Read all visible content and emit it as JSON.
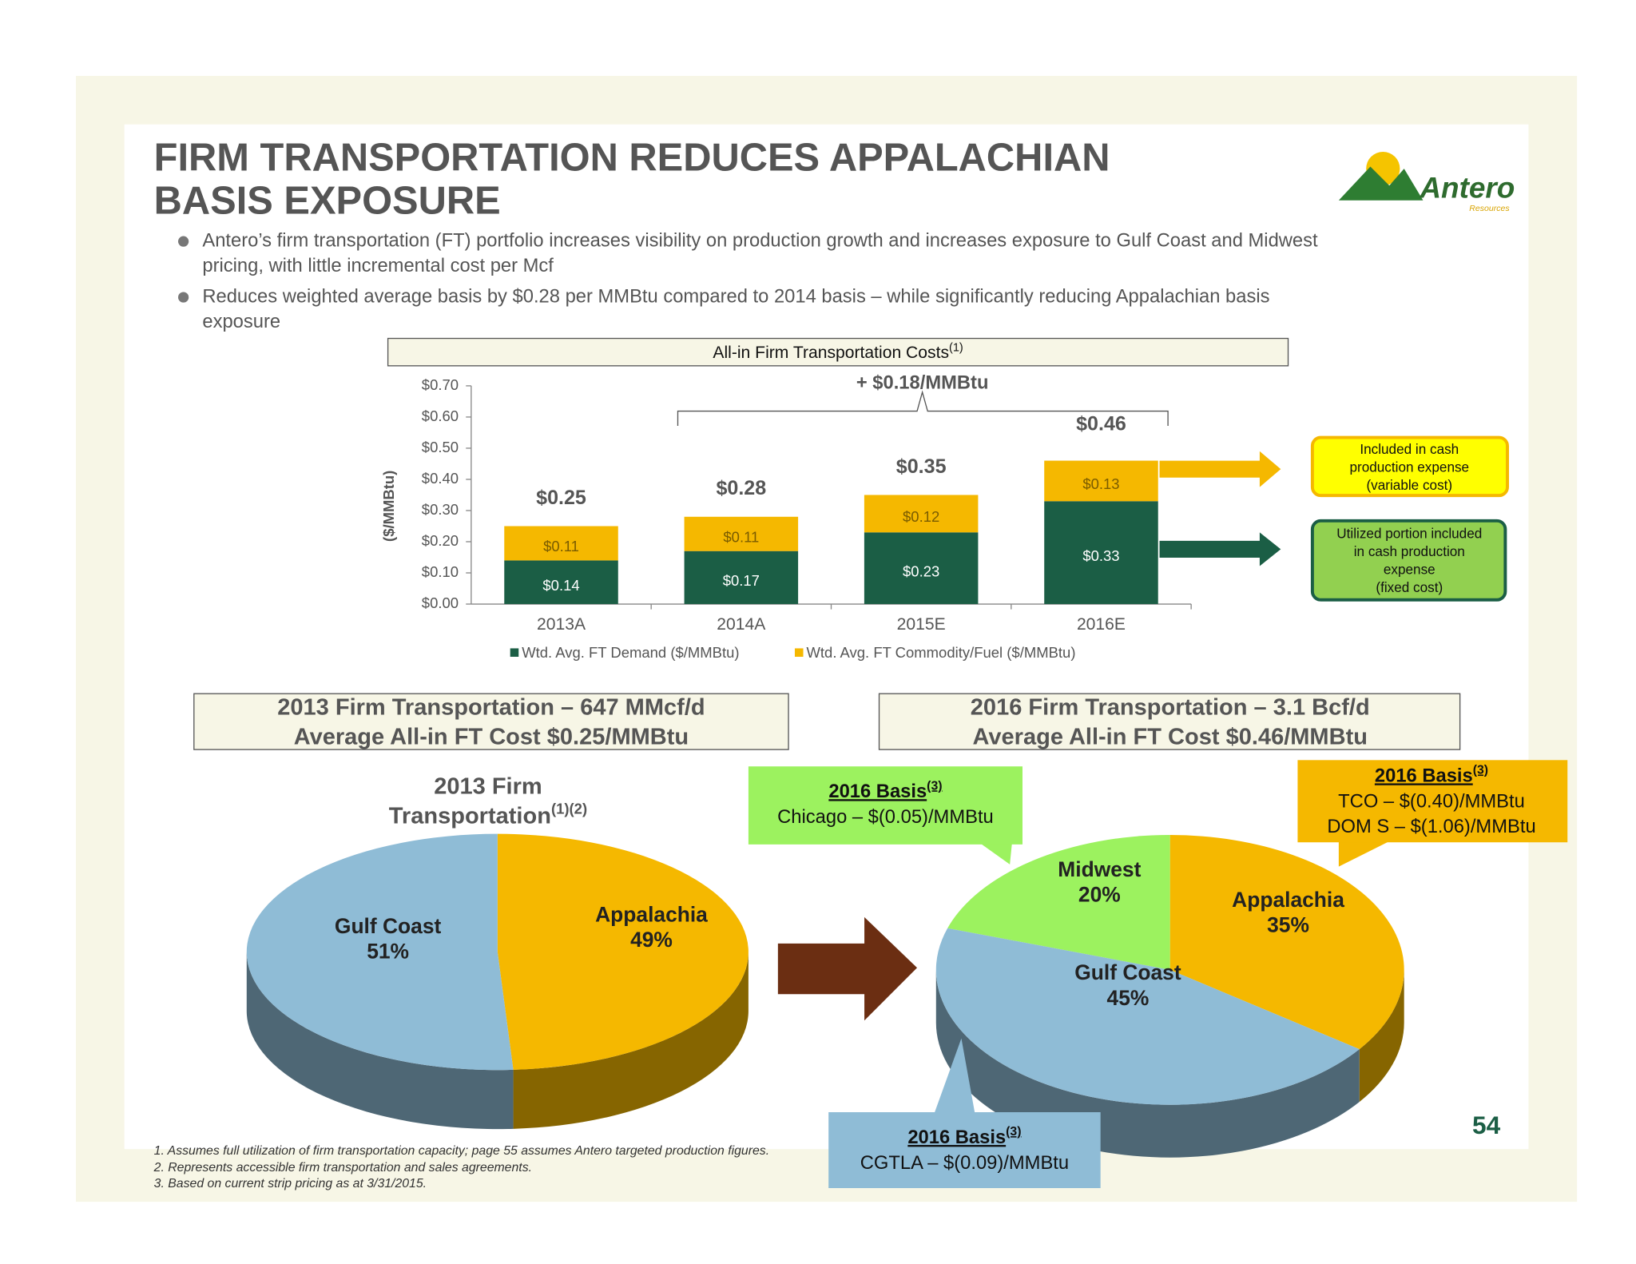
{
  "header": {
    "title_lines": [
      "FIRM TRANSPORTATION REDUCES APPALACHIAN",
      "BASIS EXPOSURE"
    ],
    "logo": "Antero",
    "logo_sub": "Resources"
  },
  "bullets": [
    [
      "Antero’s firm transportation (FT) portfolio increases visibility on production growth and  increases exposure to Gulf Coast and Midwest",
      "pricing, with little incremental cost per Mcf"
    ],
    [
      "Reduces weighted average basis by $0.28 per MMBtu compared to 2014 basis – while significantly reducing Appalachian basis",
      "exposure"
    ]
  ],
  "chart_data": [
    {
      "type": "bar",
      "stacked": true,
      "title": "All-in Firm Transportation Costs",
      "title_note": "(1)",
      "ylabel": "($/MMBtu)",
      "annotation": "+ $0.18/MMBtu",
      "categories": [
        "2013A",
        "2014A",
        "2015E",
        "2016E"
      ],
      "series": [
        {
          "name": "Wtd. Avg. FT Demand ($/MMBtu)",
          "color": "#1b5e45",
          "label_color": "#ffffff",
          "values": [
            0.14,
            0.17,
            0.23,
            0.33
          ],
          "value_labels": [
            "$0.14",
            "$0.17",
            "$0.23",
            "$0.33"
          ]
        },
        {
          "name": "Wtd. Avg. FT Commodity/Fuel ($/MMBtu)",
          "color": "#f5b800",
          "label_color": "#7a5c00",
          "values": [
            0.11,
            0.11,
            0.12,
            0.13
          ],
          "value_labels": [
            "$0.11",
            "$0.11",
            "$0.12",
            "$0.13"
          ]
        }
      ],
      "total_labels": [
        "$0.25",
        "$0.28",
        "$0.35",
        "$0.46"
      ],
      "ylim": [
        0,
        0.7
      ],
      "yticks": [
        {
          "value": 0,
          "label": "$0.00"
        },
        {
          "value": 0.1,
          "label": "$0.10"
        },
        {
          "value": 0.2,
          "label": "$0.20"
        },
        {
          "value": 0.3,
          "label": "$0.30"
        },
        {
          "value": 0.4,
          "label": "$0.40"
        },
        {
          "value": 0.5,
          "label": "$0.50"
        },
        {
          "value": 0.6,
          "label": "$0.60"
        },
        {
          "value": 0.7,
          "label": "$0.70"
        }
      ],
      "legend": "bottom"
    },
    {
      "type": "pie",
      "title_lines": [
        "2013 Firm",
        "Transportation"
      ],
      "title_note": "(1)(2)",
      "categories": [
        "Appalachia",
        "Gulf Coast"
      ],
      "values": [
        49,
        51
      ],
      "value_labels": [
        "49%",
        "51%"
      ],
      "colors": [
        "#f5b800",
        "#8fbcd6"
      ]
    },
    {
      "type": "pie",
      "categories": [
        "Midwest",
        "Appalachia",
        "Gulf Coast"
      ],
      "values": [
        20,
        35,
        45
      ],
      "value_labels": [
        "20%",
        "35%",
        "45%"
      ],
      "colors": [
        "#9cf25f",
        "#f5b800",
        "#8fbcd6"
      ]
    }
  ],
  "side_notes": [
    [
      "Included in cash",
      "production expense",
      "(variable cost)"
    ],
    [
      "Utilized portion included",
      "in cash production",
      "expense",
      "(fixed cost)"
    ]
  ],
  "summaries": [
    [
      "2013 Firm Transportation – 647 MMcf/d",
      "Average All-in FT Cost $0.25/MMBtu"
    ],
    [
      "2016 Firm Transportation – 3.1 Bcf/d",
      "Average All-in FT Cost $0.46/MMBtu"
    ]
  ],
  "callouts": [
    {
      "title": "2016 Basis",
      "note": "(3)",
      "lines": [
        "Chicago – $(0.05)/MMBtu"
      ]
    },
    {
      "title": "2016 Basis",
      "note": "(3)",
      "lines": [
        "TCO – $(0.40)/MMBtu",
        "DOM S – $(1.06)/MMBtu"
      ]
    },
    {
      "title": "2016 Basis",
      "note": "(3)",
      "lines": [
        "CGTLA – $(0.09)/MMBtu"
      ]
    }
  ],
  "footnotes": [
    "1.  Assumes full utilization of firm transportation capacity; page 55 assumes Antero targeted production figures.",
    "2.  Represents accessible firm transportation and sales agreements.",
    "3.  Based on current strip pricing as at 3/31/2015."
  ],
  "page_number": "54"
}
